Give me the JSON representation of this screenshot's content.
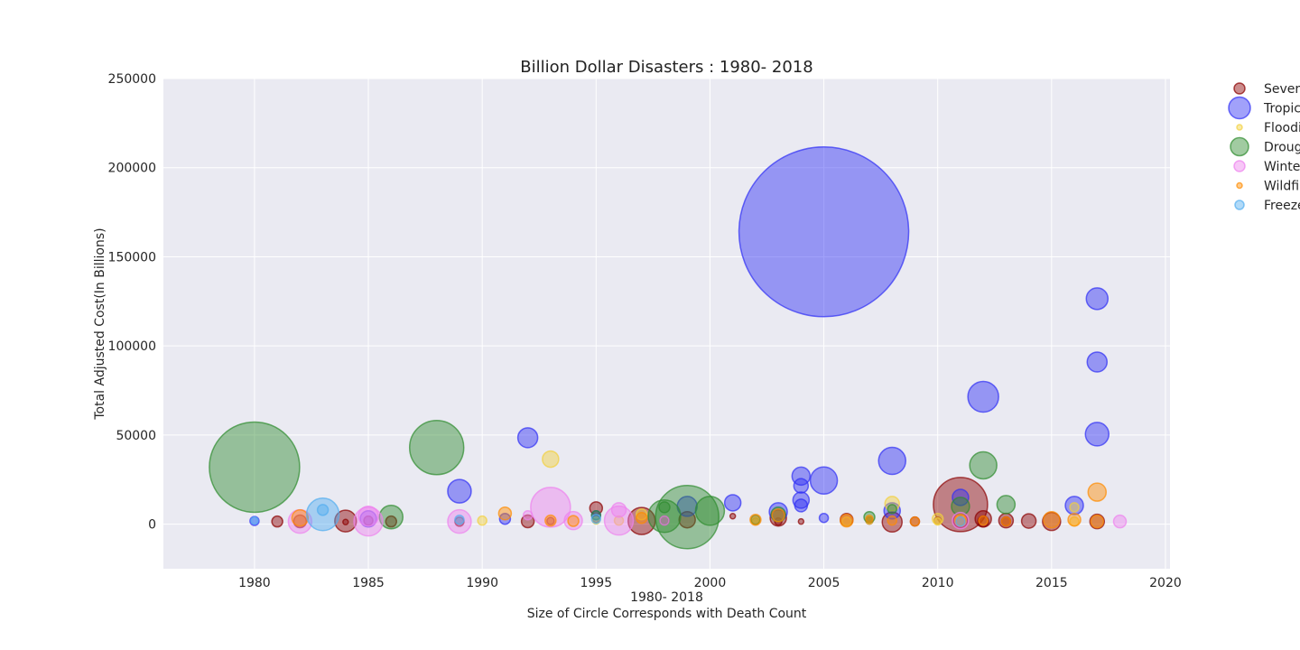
{
  "chart_data": {
    "type": "scatter",
    "title": "Billion Dollar Disasters  : 1980- 2018",
    "xlabel": "1980- 2018",
    "xlabel2": "Size of Circle Corresponds with Death Count",
    "ylabel": "Total Adjusted Cost(In Billions)",
    "xlim": [
      1976,
      2020.2
    ],
    "ylim": [
      -25000,
      250000
    ],
    "xticks": [
      1980,
      1985,
      1990,
      1995,
      2000,
      2005,
      2010,
      2015,
      2020
    ],
    "yticks": [
      0,
      50000,
      100000,
      150000,
      200000,
      250000
    ],
    "grid": true,
    "legend_position": "outside-right",
    "legend": [
      "Sever",
      "Tropic",
      "Floodi",
      "Droug",
      "Winter",
      "Wildfir",
      "Freeze"
    ],
    "series": [
      {
        "name": "Sever",
        "color": "#8b0000",
        "points": [
          {
            "x": 1981,
            "y": 1500,
            "r": 6
          },
          {
            "x": 1982,
            "y": 1600,
            "r": 7
          },
          {
            "x": 1984,
            "y": 1800,
            "r": 12
          },
          {
            "x": 1984,
            "y": 1200,
            "r": 3
          },
          {
            "x": 1985,
            "y": 2000,
            "r": 5
          },
          {
            "x": 1986,
            "y": 1500,
            "r": 6
          },
          {
            "x": 1989,
            "y": 1400,
            "r": 5
          },
          {
            "x": 1992,
            "y": 1600,
            "r": 7
          },
          {
            "x": 1993,
            "y": 1800,
            "r": 4
          },
          {
            "x": 1995,
            "y": 9000,
            "r": 7
          },
          {
            "x": 1995,
            "y": 3000,
            "r": 4
          },
          {
            "x": 1997,
            "y": 1800,
            "r": 15
          },
          {
            "x": 1998,
            "y": 2000,
            "r": 5
          },
          {
            "x": 1999,
            "y": 2500,
            "r": 9
          },
          {
            "x": 2001,
            "y": 4500,
            "r": 3
          },
          {
            "x": 2003,
            "y": 3500,
            "r": 9
          },
          {
            "x": 2003,
            "y": 1500,
            "r": 4
          },
          {
            "x": 2004,
            "y": 1500,
            "r": 3
          },
          {
            "x": 2006,
            "y": 2500,
            "r": 7
          },
          {
            "x": 2007,
            "y": 2000,
            "r": 4
          },
          {
            "x": 2008,
            "y": 1200,
            "r": 11
          },
          {
            "x": 2009,
            "y": 1500,
            "r": 5
          },
          {
            "x": 2010,
            "y": 2000,
            "r": 4
          },
          {
            "x": 2011,
            "y": 11000,
            "r": 30
          },
          {
            "x": 2011,
            "y": 2000,
            "r": 8
          },
          {
            "x": 2012,
            "y": 3000,
            "r": 9
          },
          {
            "x": 2012,
            "y": 1500,
            "r": 6
          },
          {
            "x": 2013,
            "y": 2000,
            "r": 8
          },
          {
            "x": 2013,
            "y": 1500,
            "r": 5
          },
          {
            "x": 2014,
            "y": 1800,
            "r": 8
          },
          {
            "x": 2015,
            "y": 1500,
            "r": 10
          },
          {
            "x": 2017,
            "y": 1500,
            "r": 8
          }
        ]
      },
      {
        "name": "Tropic",
        "color": "#2f2ff5",
        "points": [
          {
            "x": 1980,
            "y": 1800,
            "r": 5
          },
          {
            "x": 1985,
            "y": 3000,
            "r": 9
          },
          {
            "x": 1989,
            "y": 18500,
            "r": 13
          },
          {
            "x": 1991,
            "y": 3000,
            "r": 6
          },
          {
            "x": 1992,
            "y": 48500,
            "r": 11
          },
          {
            "x": 1995,
            "y": 5000,
            "r": 5
          },
          {
            "x": 1999,
            "y": 10000,
            "r": 11
          },
          {
            "x": 2001,
            "y": 12000,
            "r": 9
          },
          {
            "x": 2003,
            "y": 7000,
            "r": 10
          },
          {
            "x": 2004,
            "y": 27000,
            "r": 10
          },
          {
            "x": 2004,
            "y": 21500,
            "r": 8
          },
          {
            "x": 2004,
            "y": 13500,
            "r": 9
          },
          {
            "x": 2004,
            "y": 10500,
            "r": 7
          },
          {
            "x": 2005,
            "y": 164000,
            "r": 94
          },
          {
            "x": 2005,
            "y": 24500,
            "r": 15
          },
          {
            "x": 2005,
            "y": 3500,
            "r": 5
          },
          {
            "x": 2008,
            "y": 35500,
            "r": 15
          },
          {
            "x": 2008,
            "y": 7500,
            "r": 9
          },
          {
            "x": 2011,
            "y": 15000,
            "r": 9
          },
          {
            "x": 2012,
            "y": 71500,
            "r": 17
          },
          {
            "x": 2016,
            "y": 10500,
            "r": 10
          },
          {
            "x": 2017,
            "y": 126500,
            "r": 12
          },
          {
            "x": 2017,
            "y": 91000,
            "r": 11
          },
          {
            "x": 2017,
            "y": 50500,
            "r": 13
          }
        ]
      },
      {
        "name": "Floodi",
        "color": "#f2d03c",
        "points": [
          {
            "x": 1990,
            "y": 2000,
            "r": 5
          },
          {
            "x": 1993,
            "y": 36500,
            "r": 9
          },
          {
            "x": 1995,
            "y": 2000,
            "r": 4
          },
          {
            "x": 1996,
            "y": 2000,
            "r": 5
          },
          {
            "x": 1997,
            "y": 5500,
            "r": 6
          },
          {
            "x": 2002,
            "y": 1500,
            "r": 4
          },
          {
            "x": 2006,
            "y": 1500,
            "r": 5
          },
          {
            "x": 2007,
            "y": 2000,
            "r": 4
          },
          {
            "x": 2008,
            "y": 11500,
            "r": 8
          },
          {
            "x": 2010,
            "y": 3000,
            "r": 6
          },
          {
            "x": 2010,
            "y": 1500,
            "r": 4
          },
          {
            "x": 2011,
            "y": 2000,
            "r": 6
          },
          {
            "x": 2016,
            "y": 1500,
            "r": 5
          },
          {
            "x": 2016,
            "y": 9500,
            "r": 5
          }
        ]
      },
      {
        "name": "Droug",
        "color": "#2e8b2e",
        "points": [
          {
            "x": 1980,
            "y": 32000,
            "r": 50
          },
          {
            "x": 1986,
            "y": 4000,
            "r": 13
          },
          {
            "x": 1988,
            "y": 43000,
            "r": 30
          },
          {
            "x": 1995,
            "y": 5000,
            "r": 5
          },
          {
            "x": 1998,
            "y": 4500,
            "r": 18
          },
          {
            "x": 1998,
            "y": 9500,
            "r": 6
          },
          {
            "x": 1999,
            "y": 4000,
            "r": 35
          },
          {
            "x": 2000,
            "y": 7500,
            "r": 16
          },
          {
            "x": 2002,
            "y": 2500,
            "r": 5
          },
          {
            "x": 2003,
            "y": 5500,
            "r": 8
          },
          {
            "x": 2007,
            "y": 4000,
            "r": 6
          },
          {
            "x": 2008,
            "y": 8500,
            "r": 5
          },
          {
            "x": 2011,
            "y": 10000,
            "r": 10
          },
          {
            "x": 2012,
            "y": 33000,
            "r": 15
          },
          {
            "x": 2013,
            "y": 11000,
            "r": 10
          }
        ]
      },
      {
        "name": "Winter",
        "color": "#ee82ee",
        "points": [
          {
            "x": 1982,
            "y": 1500,
            "r": 13
          },
          {
            "x": 1985,
            "y": 1500,
            "r": 16
          },
          {
            "x": 1985,
            "y": 4500,
            "r": 11
          },
          {
            "x": 1989,
            "y": 1500,
            "r": 13
          },
          {
            "x": 1992,
            "y": 5000,
            "r": 5
          },
          {
            "x": 1993,
            "y": 9500,
            "r": 22
          },
          {
            "x": 1994,
            "y": 2000,
            "r": 10
          },
          {
            "x": 1996,
            "y": 2000,
            "r": 16
          },
          {
            "x": 1996,
            "y": 8000,
            "r": 8
          },
          {
            "x": 1998,
            "y": 2000,
            "r": 5
          },
          {
            "x": 2011,
            "y": 2000,
            "r": 9
          },
          {
            "x": 2018,
            "y": 1500,
            "r": 7
          }
        ]
      },
      {
        "name": "Wildfir",
        "color": "#ff8c00",
        "points": [
          {
            "x": 1982,
            "y": 3500,
            "r": 9
          },
          {
            "x": 1991,
            "y": 6000,
            "r": 7
          },
          {
            "x": 1993,
            "y": 2000,
            "r": 6
          },
          {
            "x": 1994,
            "y": 1800,
            "r": 6
          },
          {
            "x": 1997,
            "y": 3500,
            "r": 6
          },
          {
            "x": 2002,
            "y": 2500,
            "r": 6
          },
          {
            "x": 2003,
            "y": 5000,
            "r": 7
          },
          {
            "x": 2006,
            "y": 2000,
            "r": 7
          },
          {
            "x": 2007,
            "y": 3000,
            "r": 4
          },
          {
            "x": 2008,
            "y": 2000,
            "r": 5
          },
          {
            "x": 2009,
            "y": 1500,
            "r": 5
          },
          {
            "x": 2011,
            "y": 2500,
            "r": 6
          },
          {
            "x": 2012,
            "y": 2000,
            "r": 5
          },
          {
            "x": 2013,
            "y": 1500,
            "r": 5
          },
          {
            "x": 2015,
            "y": 2500,
            "r": 9
          },
          {
            "x": 2016,
            "y": 2500,
            "r": 7
          },
          {
            "x": 2017,
            "y": 18000,
            "r": 10
          },
          {
            "x": 2017,
            "y": 1500,
            "r": 7
          }
        ]
      },
      {
        "name": "Freeze",
        "color": "#53aef0",
        "points": [
          {
            "x": 1980,
            "y": 2000,
            "r": 4
          },
          {
            "x": 1983,
            "y": 5500,
            "r": 18
          },
          {
            "x": 1983,
            "y": 8000,
            "r": 6
          },
          {
            "x": 1989,
            "y": 2500,
            "r": 5
          },
          {
            "x": 1995,
            "y": 3000,
            "r": 5
          },
          {
            "x": 2011,
            "y": 1500,
            "r": 5
          }
        ]
      }
    ]
  }
}
